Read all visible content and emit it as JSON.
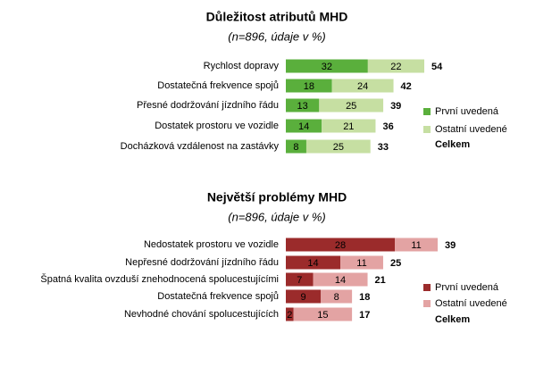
{
  "chart_data": [
    {
      "type": "bar",
      "stacked": true,
      "orientation": "horizontal",
      "title": "Důležitost atributů MHD",
      "subtitle": "(n=896, údaje v %)",
      "categories": [
        "Rychlost dopravy",
        "Dostatečná frekvence spojů",
        "Přesné dodržování jízdního řádu",
        "Dostatek prostoru ve vozidle",
        "Docházková vzdálenost na zastávky"
      ],
      "series": [
        {
          "name": "První uvedená",
          "color": "#5aaf3c",
          "values": [
            32,
            18,
            13,
            14,
            8
          ]
        },
        {
          "name": "Ostatní uvedené",
          "color": "#c6dfa2",
          "values": [
            22,
            24,
            25,
            21,
            25
          ]
        }
      ],
      "totals_name": "Celkem",
      "totals": [
        54,
        42,
        39,
        36,
        33
      ]
    },
    {
      "type": "bar",
      "stacked": true,
      "orientation": "horizontal",
      "title": "Největší problémy MHD",
      "subtitle": "(n=896, údaje v %)",
      "categories": [
        "Nedostatek prostoru ve vozidle",
        "Nepřesné dodržování jízdního řádu",
        "Špatná kvalita ovzduší znehodnocená spolucestujícími",
        "Dostatečná frekvence spojů",
        "Nevhodné chování spolucestujících"
      ],
      "series": [
        {
          "name": "První uvedená",
          "color": "#9b2b2b",
          "values": [
            28,
            14,
            7,
            9,
            2
          ]
        },
        {
          "name": "Ostatní uvedené",
          "color": "#e3a3a3",
          "values": [
            11,
            11,
            14,
            8,
            15
          ]
        }
      ],
      "totals_name": "Celkem",
      "totals": [
        39,
        25,
        21,
        18,
        17
      ]
    }
  ]
}
